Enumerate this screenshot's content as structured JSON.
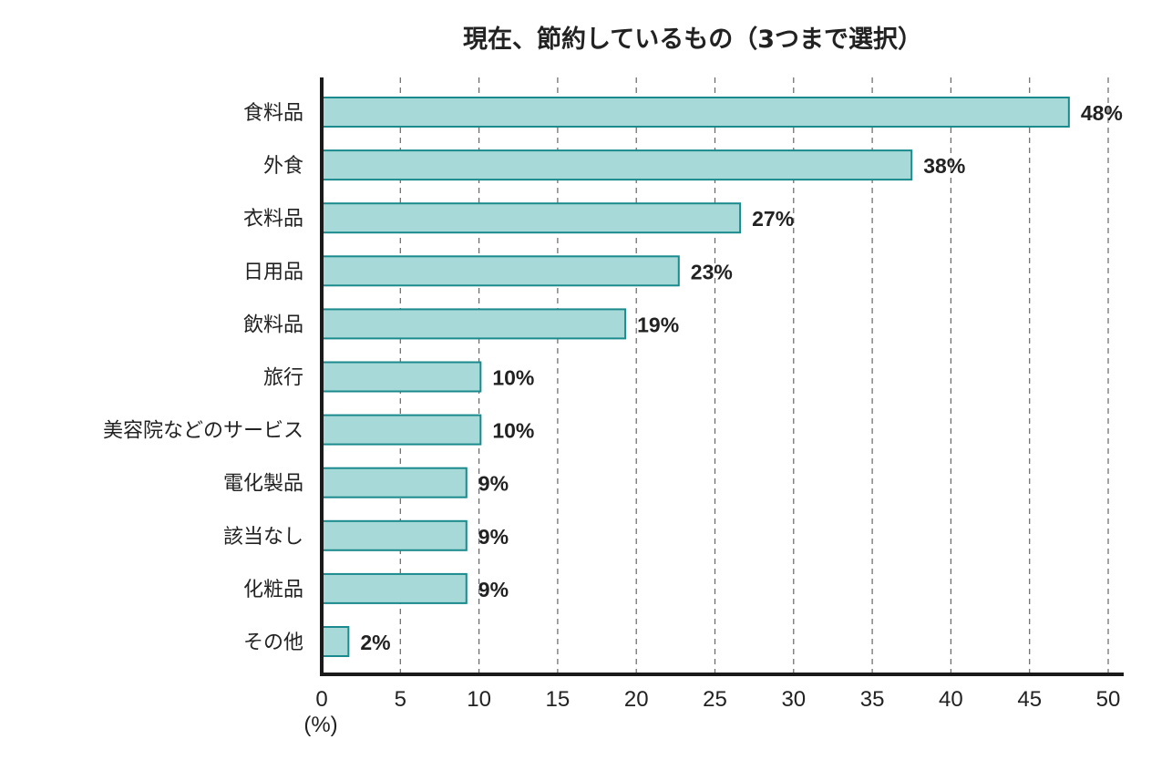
{
  "chart_data": {
    "type": "bar",
    "orientation": "horizontal",
    "title": "現在、節約しているもの（3つまで選択）",
    "xlabel": "(%)",
    "ylabel": "",
    "xlim": [
      0,
      50
    ],
    "xticks": [
      0,
      5,
      10,
      15,
      20,
      25,
      30,
      35,
      40,
      45,
      50
    ],
    "grid": "vertical dashed",
    "categories": [
      "食料品",
      "外食",
      "衣料品",
      "日用品",
      "飲料品",
      "旅行",
      "美容院などのサービス",
      "電化製品",
      "該当なし",
      "化粧品",
      "その他"
    ],
    "values": [
      47.5,
      37.5,
      26.6,
      22.7,
      19.3,
      10.1,
      10.1,
      9.2,
      9.2,
      9.2,
      1.7
    ],
    "data_labels": [
      "48%",
      "38%",
      "27%",
      "23%",
      "19%",
      "10%",
      "10%",
      "9%",
      "9%",
      "9%",
      "2%"
    ],
    "colors": {
      "bar_fill": "#a6d9d8",
      "bar_stroke": "#1b8a8c",
      "axis": "#1a1a1a",
      "grid": "#666666"
    }
  }
}
